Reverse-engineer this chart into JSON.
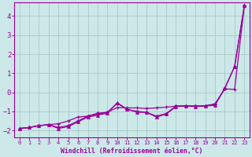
{
  "xlabel": "Windchill (Refroidissement éolien,°C)",
  "background_color": "#cce8e8",
  "grid_color": "#aac8c8",
  "line_color": "#990099",
  "xlim": [
    -0.5,
    23.5
  ],
  "ylim": [
    -2.35,
    4.7
  ],
  "x_ticks": [
    0,
    1,
    2,
    3,
    4,
    5,
    6,
    7,
    8,
    9,
    10,
    11,
    12,
    13,
    14,
    15,
    16,
    17,
    18,
    19,
    20,
    21,
    22,
    23
  ],
  "y_ticks": [
    -2,
    -1,
    0,
    1,
    2,
    3,
    4
  ],
  "series1_x": [
    0,
    1,
    2,
    3,
    4,
    5,
    6,
    7,
    8,
    9,
    10,
    11,
    12,
    13,
    14,
    15,
    16,
    17,
    18,
    19,
    20,
    21,
    22,
    23
  ],
  "series1_y": [
    -1.9,
    -1.85,
    -1.75,
    -1.7,
    -1.65,
    -1.5,
    -1.3,
    -1.25,
    -1.15,
    -1.05,
    -0.8,
    -0.82,
    -0.82,
    -0.85,
    -0.82,
    -0.78,
    -0.73,
    -0.72,
    -0.72,
    -0.72,
    -0.6,
    0.18,
    0.15,
    4.55
  ],
  "series2_x": [
    0,
    1,
    2,
    3,
    4,
    5,
    6,
    7,
    8,
    9,
    10,
    11,
    12,
    13,
    14,
    15,
    16,
    17,
    18,
    19,
    20,
    21,
    22,
    23
  ],
  "series2_y": [
    -1.9,
    -1.85,
    -1.75,
    -1.7,
    -1.9,
    -1.8,
    -1.55,
    -1.3,
    -1.2,
    -1.1,
    -0.55,
    -0.88,
    -1.05,
    -1.05,
    -1.3,
    -1.15,
    -0.75,
    -0.72,
    -0.75,
    -0.72,
    -0.68,
    0.22,
    1.35,
    4.55
  ],
  "series3_x": [
    0,
    1,
    2,
    3,
    4,
    5,
    6,
    7,
    8,
    9,
    10,
    11,
    12,
    13,
    14,
    15,
    16,
    17,
    18,
    19,
    20,
    21,
    22,
    23
  ],
  "series3_y": [
    -1.9,
    -1.85,
    -1.75,
    -1.7,
    -1.85,
    -1.75,
    -1.5,
    -1.25,
    -1.1,
    -1.05,
    -0.58,
    -0.9,
    -1.0,
    -1.05,
    -1.25,
    -1.12,
    -0.72,
    -0.7,
    -0.72,
    -0.7,
    -0.65,
    0.2,
    1.35,
    4.55
  ]
}
